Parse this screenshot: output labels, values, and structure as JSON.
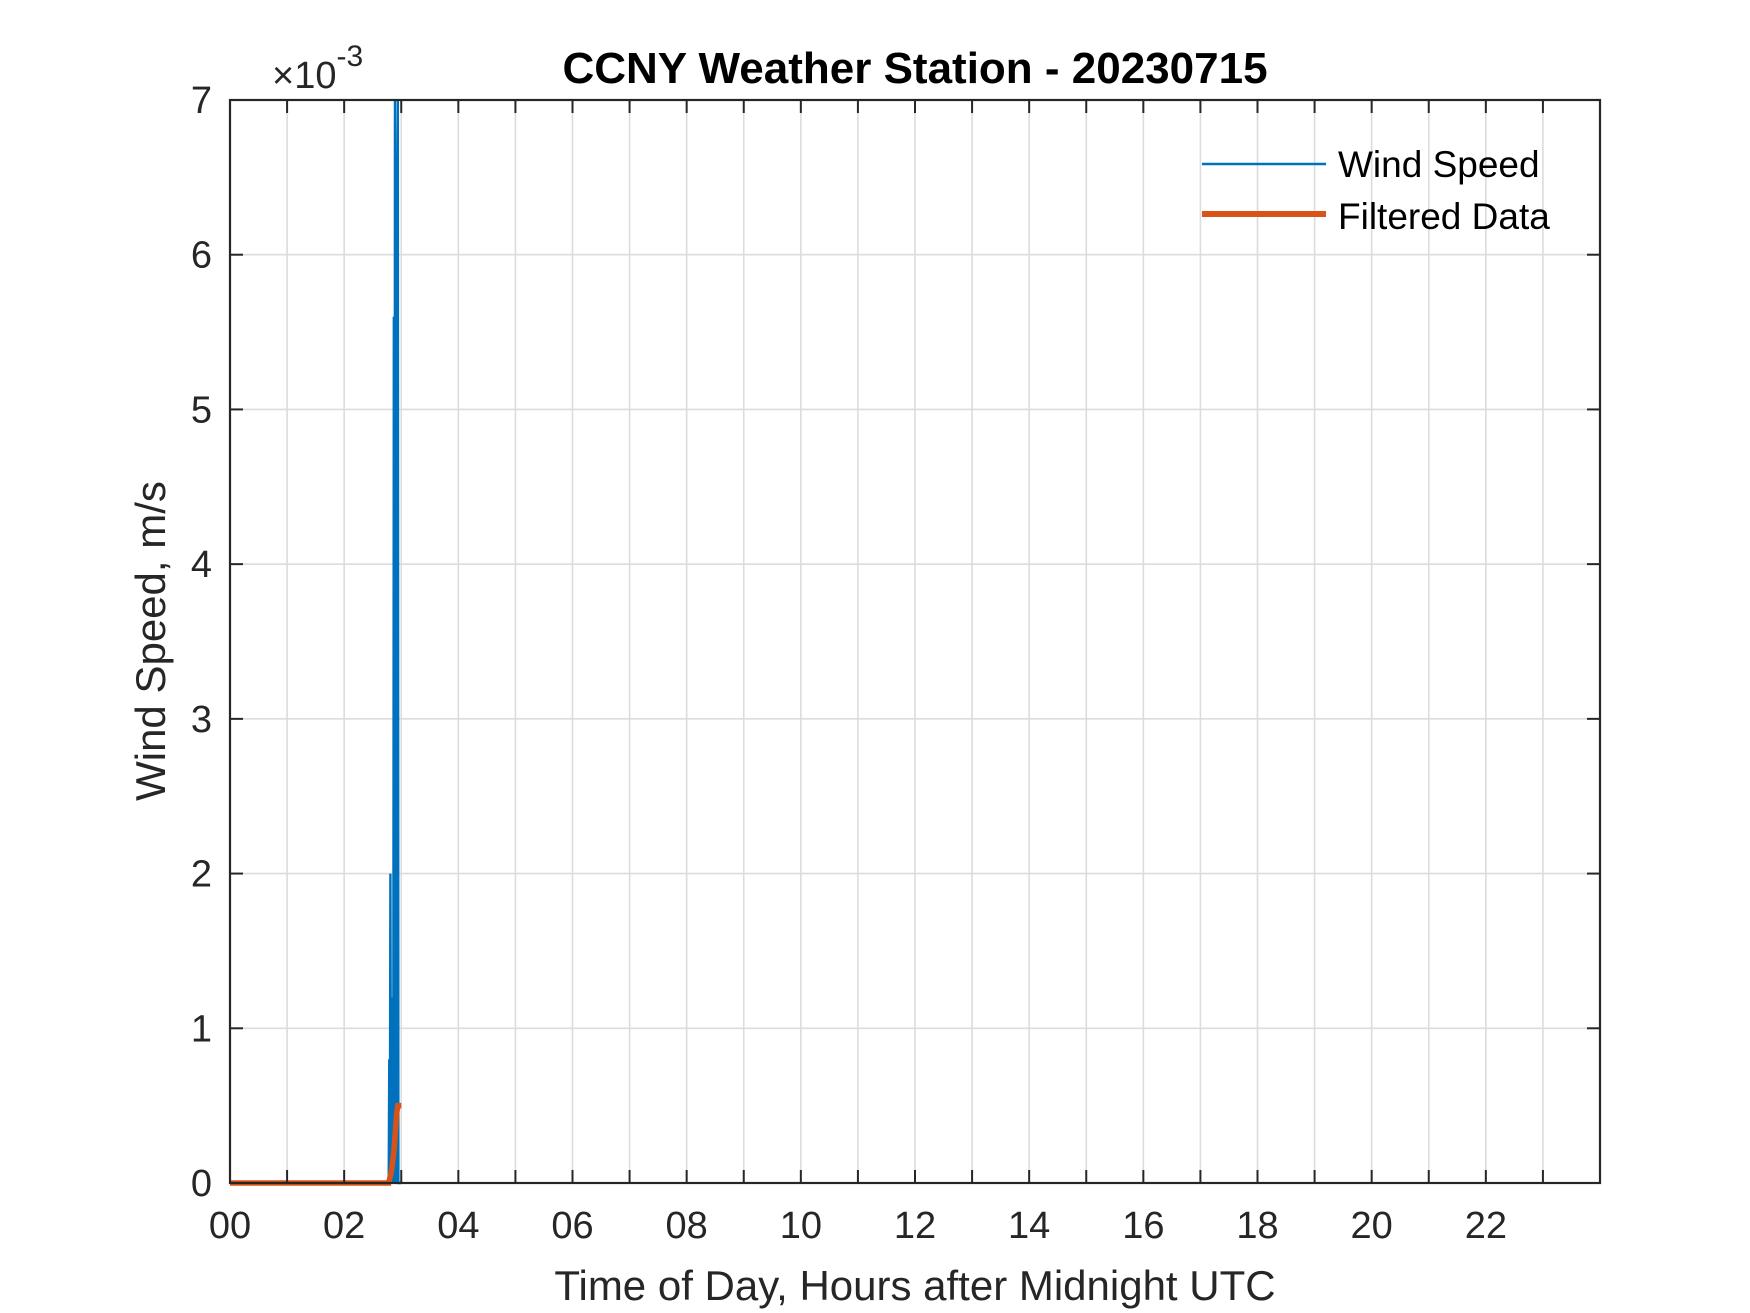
{
  "chart_data": {
    "type": "line",
    "title": "CCNY Weather Station - 20230715",
    "xlabel": "Time of Day, Hours after Midnight UTC",
    "ylabel": "Wind Speed, m/s",
    "xlim": [
      0,
      24
    ],
    "ylim": [
      0,
      0.007
    ],
    "x_ticks": [
      0,
      2,
      4,
      6,
      8,
      10,
      12,
      14,
      16,
      18,
      20,
      22
    ],
    "x_tick_labels": [
      "00",
      "02",
      "04",
      "06",
      "08",
      "10",
      "12",
      "14",
      "16",
      "18",
      "20",
      "22"
    ],
    "y_ticks": [
      0,
      0.001,
      0.002,
      0.003,
      0.004,
      0.005,
      0.006,
      0.007
    ],
    "y_tick_labels": [
      "0",
      "1",
      "2",
      "3",
      "4",
      "5",
      "6",
      "7"
    ],
    "y_exponent": {
      "base": "×10",
      "power": "-3"
    },
    "grid": true,
    "legend_position": "top-right",
    "colors": {
      "wind_speed": "#0072BD",
      "filtered": "#D95319",
      "axes": "#262626",
      "grid": "#dcdcdc"
    },
    "series": [
      {
        "name": "Wind Speed",
        "x": [
          0,
          2.78,
          2.79,
          2.8,
          2.81,
          2.82,
          2.83,
          2.84,
          2.85,
          2.86,
          2.87,
          2.88,
          2.89,
          2.9,
          2.91,
          2.92,
          2.93,
          2.94,
          2.95,
          2.96,
          2.97,
          2.98,
          2.99,
          3.0
        ],
        "values": [
          0,
          0,
          0.0008,
          0,
          0.002,
          0,
          0.0012,
          0,
          0.0007,
          0,
          0.0056,
          0,
          0.007,
          0.0065,
          0,
          0.0039,
          0,
          0.007,
          0,
          0,
          0,
          0,
          0,
          0
        ]
      },
      {
        "name": "Filtered Data",
        "x": [
          0,
          2.78,
          2.83,
          2.87,
          2.9,
          2.92,
          2.94,
          3.0
        ],
        "values": [
          0,
          0,
          8e-05,
          0.0002,
          0.00035,
          0.00045,
          0.0005,
          0.0005
        ]
      }
    ]
  }
}
